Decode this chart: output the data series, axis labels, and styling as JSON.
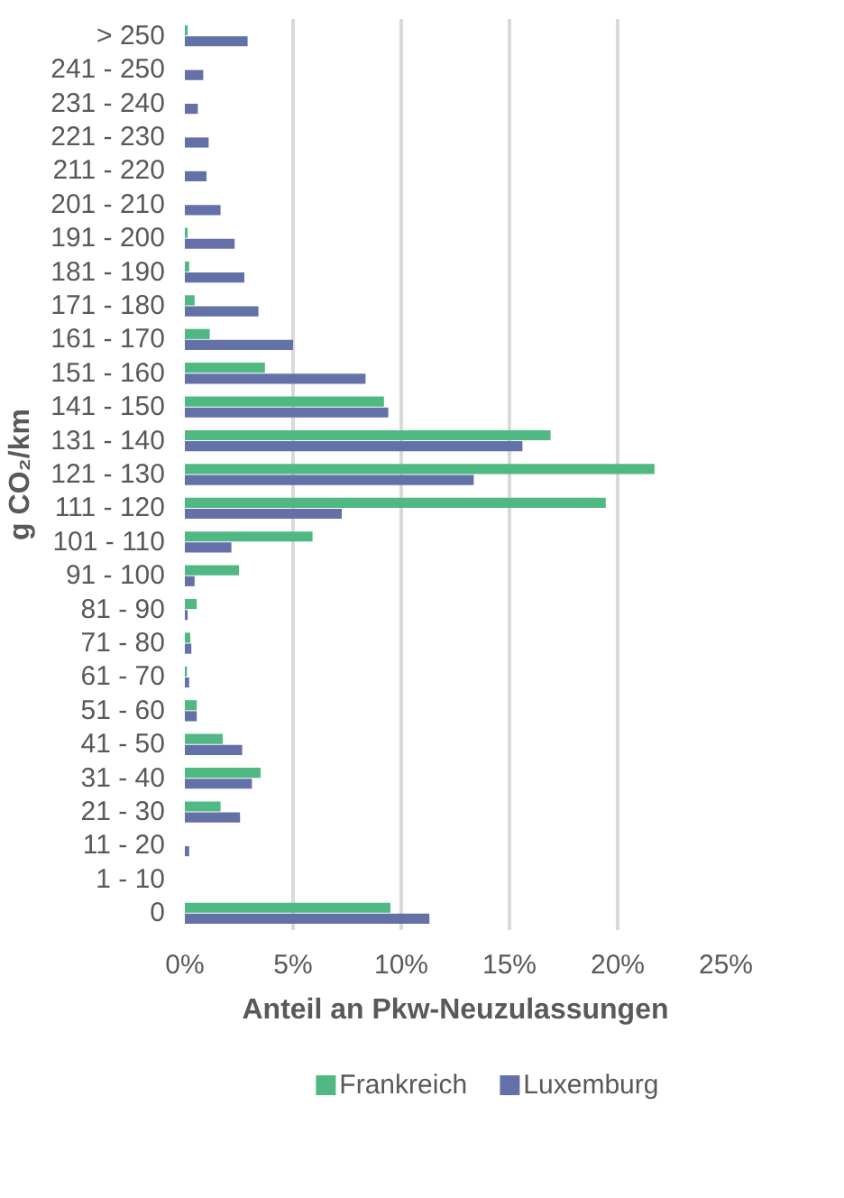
{
  "chart_data": {
    "type": "bar",
    "orientation": "horizontal",
    "xlabel": "Anteil an Pkw-Neuzulassungen",
    "ylabel": "g CO₂/km",
    "categories": [
      "> 250",
      "241 - 250",
      "231 - 240",
      "221 - 230",
      "211 - 220",
      "201 - 210",
      "191 - 200",
      "181 - 190",
      "171 - 180",
      "161 - 170",
      "151 - 160",
      "141 - 150",
      "131 - 140",
      "121 - 130",
      "111 - 120",
      "101 - 110",
      "91 - 100",
      "81 - 90",
      "71 - 80",
      "61 - 70",
      "51 - 60",
      "41 - 50",
      "31 - 40",
      "21 - 30",
      "11 - 20",
      "1 - 10",
      "0"
    ],
    "series": [
      {
        "name": "Frankreich",
        "color": "#4fb883",
        "values": [
          0.13,
          0,
          0,
          0,
          0,
          0,
          0.13,
          0.2,
          0.45,
          1.15,
          3.7,
          9.2,
          16.9,
          21.7,
          19.45,
          5.9,
          2.5,
          0.55,
          0.25,
          0.1,
          0.55,
          1.75,
          3.5,
          1.65,
          0,
          0,
          9.5
        ]
      },
      {
        "name": "Luxemburg",
        "color": "#6470a8",
        "values": [
          2.9,
          0.85,
          0.6,
          1.1,
          1.0,
          1.65,
          2.3,
          2.75,
          3.4,
          5.0,
          8.35,
          9.4,
          15.6,
          13.35,
          7.25,
          2.15,
          0.45,
          0.13,
          0.3,
          0.2,
          0.55,
          2.65,
          3.1,
          2.55,
          0.2,
          0,
          11.3
        ]
      }
    ],
    "xlim": [
      0,
      25
    ],
    "xticks": [
      {
        "value": 0,
        "label": "0%"
      },
      {
        "value": 5,
        "label": "5%"
      },
      {
        "value": 10,
        "label": "10%"
      },
      {
        "value": 15,
        "label": "15%"
      },
      {
        "value": 20,
        "label": "20%"
      },
      {
        "value": 25,
        "label": "25%"
      }
    ],
    "grid": "x",
    "legend": "bottom"
  }
}
